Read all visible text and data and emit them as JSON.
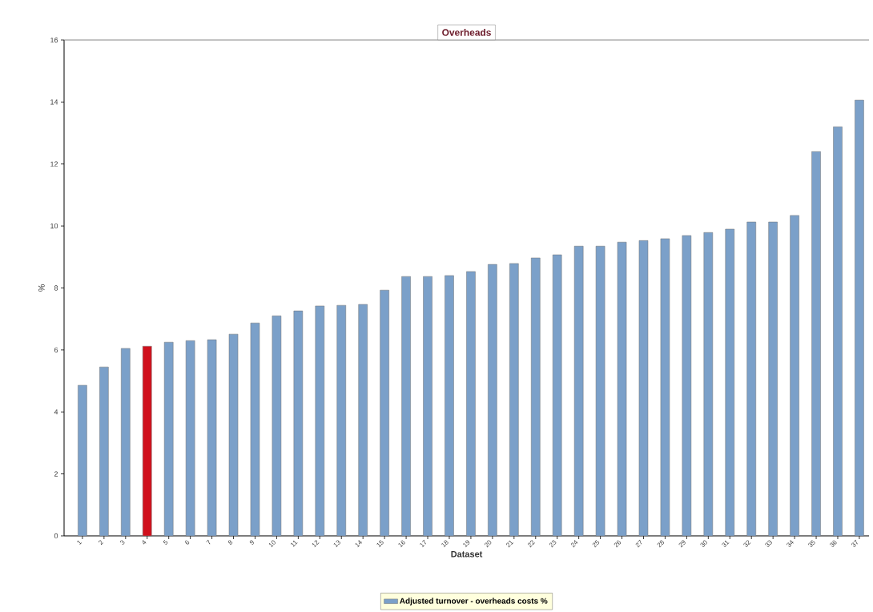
{
  "chart_data": {
    "type": "bar",
    "title": "Overheads",
    "xlabel": "Dataset",
    "ylabel": "%",
    "categories": [
      "1",
      "2",
      "3",
      "4",
      "5",
      "6",
      "7",
      "8",
      "9",
      "10",
      "11",
      "12",
      "13",
      "14",
      "15",
      "16",
      "17",
      "18",
      "19",
      "20",
      "21",
      "22",
      "23",
      "24",
      "25",
      "26",
      "27",
      "28",
      "29",
      "30",
      "31",
      "32",
      "33",
      "34",
      "35",
      "36",
      "37"
    ],
    "series": [
      {
        "name": "Adjusted turnover - overheads costs %",
        "color": "#7ba0c9",
        "colors": [
          "#7ba0c9",
          "#7ba0c9",
          "#7ba0c9",
          "#d0101c",
          "#7ba0c9",
          "#7ba0c9",
          "#7ba0c9",
          "#7ba0c9",
          "#7ba0c9",
          "#7ba0c9",
          "#7ba0c9",
          "#7ba0c9",
          "#7ba0c9",
          "#7ba0c9",
          "#7ba0c9",
          "#7ba0c9",
          "#7ba0c9",
          "#7ba0c9",
          "#7ba0c9",
          "#7ba0c9",
          "#7ba0c9",
          "#7ba0c9",
          "#7ba0c9",
          "#7ba0c9",
          "#7ba0c9",
          "#7ba0c9",
          "#7ba0c9",
          "#7ba0c9",
          "#7ba0c9",
          "#7ba0c9",
          "#7ba0c9",
          "#7ba0c9",
          "#7ba0c9",
          "#7ba0c9",
          "#7ba0c9",
          "#7ba0c9",
          "#7ba0c9"
        ],
        "values": [
          4.86,
          5.45,
          6.05,
          6.12,
          6.25,
          6.3,
          6.33,
          6.51,
          6.87,
          7.1,
          7.26,
          7.42,
          7.44,
          7.47,
          7.93,
          8.37,
          8.37,
          8.4,
          8.53,
          8.76,
          8.79,
          8.97,
          9.07,
          9.35,
          9.35,
          9.48,
          9.53,
          9.59,
          9.69,
          9.79,
          9.9,
          10.13,
          10.13,
          10.34,
          12.4,
          13.2,
          14.06
        ]
      }
    ],
    "ylim": [
      0,
      16
    ],
    "yticks": [
      0,
      2,
      4,
      6,
      8,
      10,
      12,
      14,
      16
    ],
    "legend": "bottom"
  }
}
